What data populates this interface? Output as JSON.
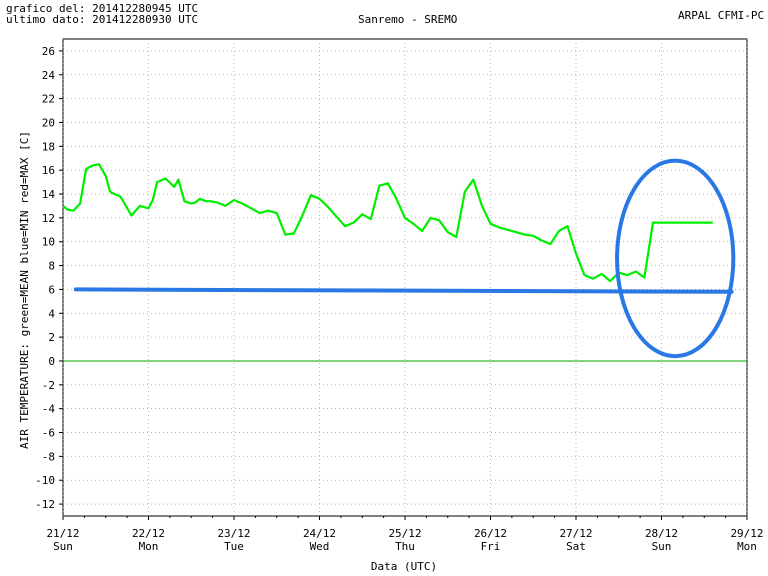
{
  "header": {
    "grafico_label": "grafico del:",
    "grafico_value": "201412280945 UTC",
    "ultimo_label": "ultimo dato:",
    "ultimo_value": "201412280930 UTC",
    "station": "Sanremo - SREMO",
    "source": "ARPAL CFMI-PC"
  },
  "colors": {
    "mean": "#00ee00",
    "min": "#0000cc",
    "max": "#ee0000",
    "zero_line": "#00aa00",
    "grid": "#888888",
    "annotation": "#2a78e6"
  },
  "chart_data": {
    "type": "line",
    "ylabel": "AIR TEMPERATURE: green=MEAN  blue=MIN  red=MAX   [C]",
    "xlabel": "Data (UTC)",
    "ylim": [
      -13,
      27
    ],
    "yticks": [
      -12,
      -10,
      -8,
      -6,
      -4,
      -2,
      0,
      2,
      4,
      6,
      8,
      10,
      12,
      14,
      16,
      18,
      20,
      22,
      24,
      26
    ],
    "xlim": [
      0,
      8
    ],
    "xticks": [
      {
        "x": 0,
        "date": "21/12",
        "day": "Sun"
      },
      {
        "x": 1,
        "date": "22/12",
        "day": "Mon"
      },
      {
        "x": 2,
        "date": "23/12",
        "day": "Tue"
      },
      {
        "x": 3,
        "date": "24/12",
        "day": "Wed"
      },
      {
        "x": 4,
        "date": "25/12",
        "day": "Thu"
      },
      {
        "x": 5,
        "date": "26/12",
        "day": "Fri"
      },
      {
        "x": 6,
        "date": "27/12",
        "day": "Sat"
      },
      {
        "x": 7,
        "date": "28/12",
        "day": "Sun"
      },
      {
        "x": 8,
        "date": "29/12",
        "day": "Mon"
      }
    ],
    "grid": true,
    "series": [
      {
        "name": "MEAN",
        "x": [
          0.0,
          0.05,
          0.12,
          0.2,
          0.27,
          0.35,
          0.42,
          0.5,
          0.55,
          0.6,
          0.67,
          0.72,
          0.8,
          0.9,
          1.0,
          1.05,
          1.1,
          1.2,
          1.3,
          1.35,
          1.42,
          1.5,
          1.55,
          1.6,
          1.67,
          1.72,
          1.8,
          1.9,
          2.0,
          2.1,
          2.2,
          2.3,
          2.4,
          2.5,
          2.6,
          2.7,
          2.8,
          2.9,
          3.0,
          3.1,
          3.2,
          3.3,
          3.4,
          3.5,
          3.6,
          3.7,
          3.8,
          3.9,
          4.0,
          4.1,
          4.2,
          4.3,
          4.4,
          4.5,
          4.6,
          4.7,
          4.8,
          4.9,
          5.0,
          5.1,
          5.2,
          5.3,
          5.4,
          5.5,
          5.6,
          5.7,
          5.8,
          5.9,
          6.0,
          6.1,
          6.2,
          6.3,
          6.4,
          6.5,
          6.6,
          6.7,
          6.8,
          6.9,
          7.0,
          7.1,
          7.2,
          7.3,
          7.4,
          7.5,
          7.6
        ],
        "values": [
          13.0,
          12.7,
          12.6,
          13.2,
          16.1,
          16.4,
          16.5,
          15.5,
          14.2,
          14.0,
          13.8,
          13.2,
          12.2,
          13.0,
          12.8,
          13.5,
          15.0,
          15.3,
          14.6,
          15.2,
          13.4,
          13.2,
          13.3,
          13.6,
          13.4,
          13.4,
          13.3,
          13.0,
          13.5,
          13.2,
          12.8,
          12.4,
          12.6,
          12.4,
          10.6,
          10.7,
          12.2,
          13.9,
          13.6,
          12.9,
          12.1,
          11.3,
          11.6,
          12.3,
          11.9,
          14.7,
          14.9,
          13.6,
          12.0,
          11.5,
          10.9,
          12.0,
          11.8,
          10.8,
          10.4,
          14.2,
          15.2,
          13.0,
          11.5,
          11.2,
          11.0,
          10.8,
          10.6,
          10.5,
          10.1,
          9.8,
          10.9,
          11.3,
          9.0,
          7.2,
          6.9,
          7.3,
          6.7,
          7.4,
          7.2,
          7.5,
          7.0,
          11.6,
          11.6,
          11.6,
          11.6,
          11.6,
          11.6,
          11.6,
          11.6
        ]
      }
    ],
    "annotations": [
      {
        "type": "line",
        "from": {
          "x": 0.15,
          "y": 6.0
        },
        "to": {
          "x": 7.82,
          "y": 5.8
        }
      },
      {
        "type": "ellipse",
        "center": {
          "x": 7.16,
          "y": 8.6
        },
        "rx_days": 0.68,
        "ry_deg": 8.2
      }
    ]
  }
}
